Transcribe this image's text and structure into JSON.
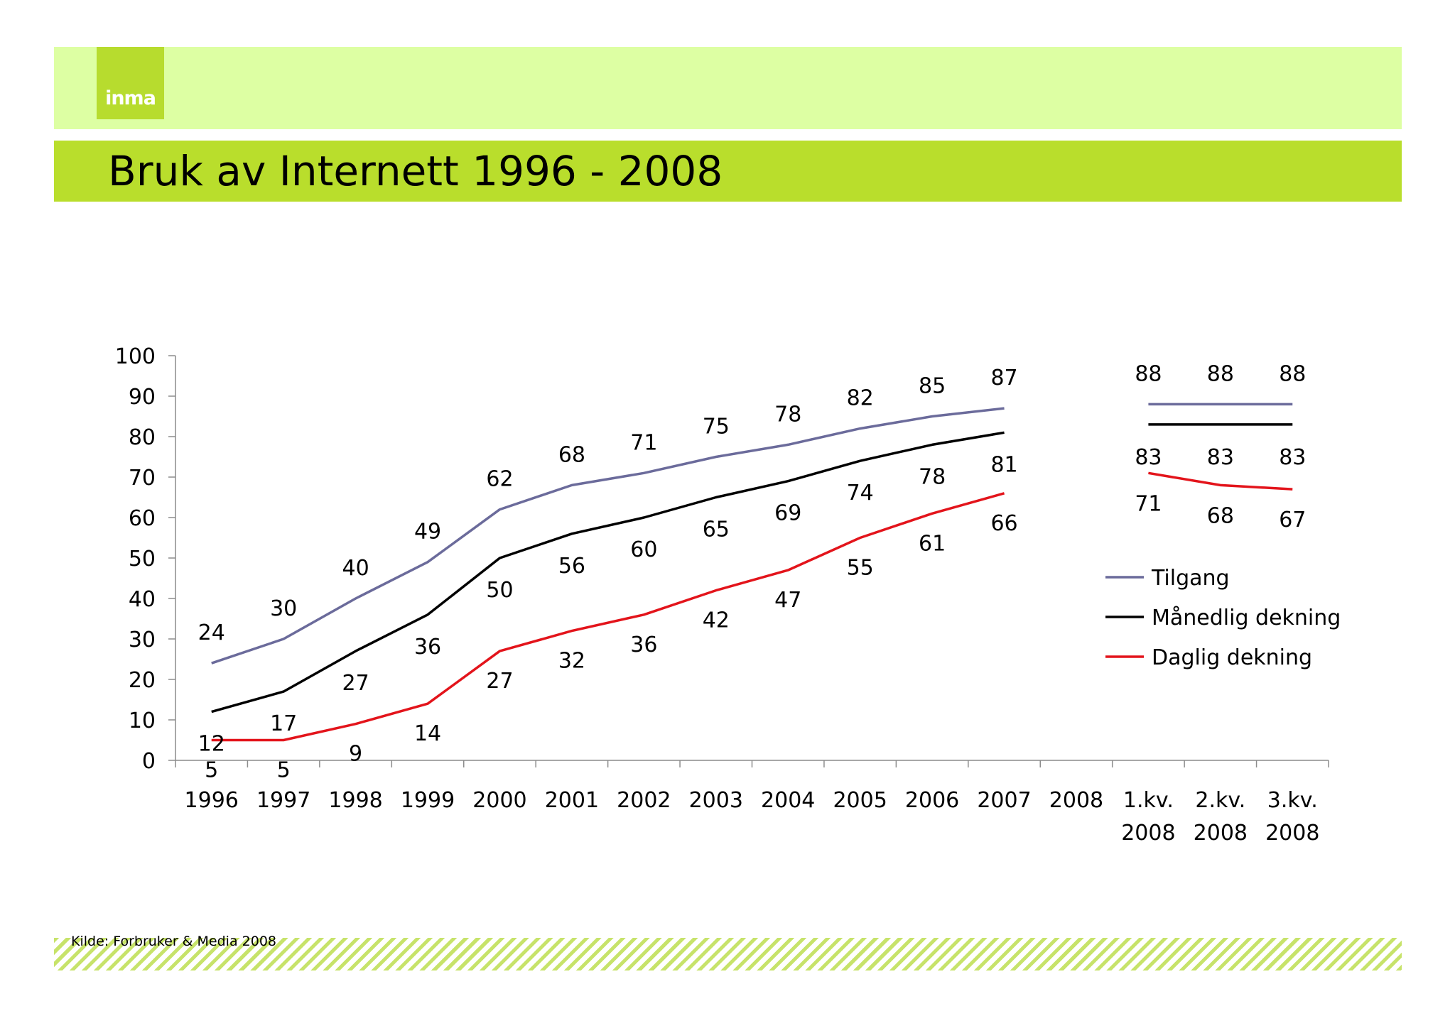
{
  "header": {
    "logo_text": "inma",
    "title": "Bruk av Internett 1996 - 2008"
  },
  "footer": {
    "source": "Kilde: Forbruker & Media 2008"
  },
  "colors": {
    "top_band": "#ddffa3",
    "title_band": "#b9de2c",
    "tilgang": "#6b6b9b",
    "maanedlig": "#000000",
    "daglig": "#e3141b"
  },
  "chart_data": {
    "type": "line",
    "title": "Bruk av Internett 1996 - 2008",
    "categories": [
      [
        "1996"
      ],
      [
        "1997"
      ],
      [
        "1998"
      ],
      [
        "1999"
      ],
      [
        "2000"
      ],
      [
        "2001"
      ],
      [
        "2002"
      ],
      [
        "2003"
      ],
      [
        "2004"
      ],
      [
        "2005"
      ],
      [
        "2006"
      ],
      [
        "2007"
      ],
      [
        "2008"
      ],
      [
        "1.kv.",
        "2008"
      ],
      [
        "2.kv.",
        "2008"
      ],
      [
        "3.kv.",
        "2008"
      ]
    ],
    "ylim": [
      0,
      100
    ],
    "yticks": [
      "0",
      "10",
      "20",
      "30",
      "40",
      "50",
      "60",
      "70",
      "80",
      "90",
      "100"
    ],
    "legend_position": "right",
    "series": [
      {
        "name": "Tilgang",
        "color": "#6b6b9b",
        "values": [
          24,
          30,
          40,
          49,
          62,
          68,
          71,
          75,
          78,
          82,
          85,
          87,
          null,
          88,
          88,
          88
        ]
      },
      {
        "name": "Månedlig dekning",
        "color": "#000000",
        "values": [
          12,
          17,
          27,
          36,
          50,
          56,
          60,
          65,
          69,
          74,
          78,
          81,
          null,
          83,
          83,
          83
        ]
      },
      {
        "name": "Daglig dekning",
        "color": "#e3141b",
        "values": [
          5,
          5,
          9,
          14,
          27,
          32,
          36,
          42,
          47,
          55,
          61,
          66,
          null,
          71,
          68,
          67
        ]
      }
    ]
  }
}
